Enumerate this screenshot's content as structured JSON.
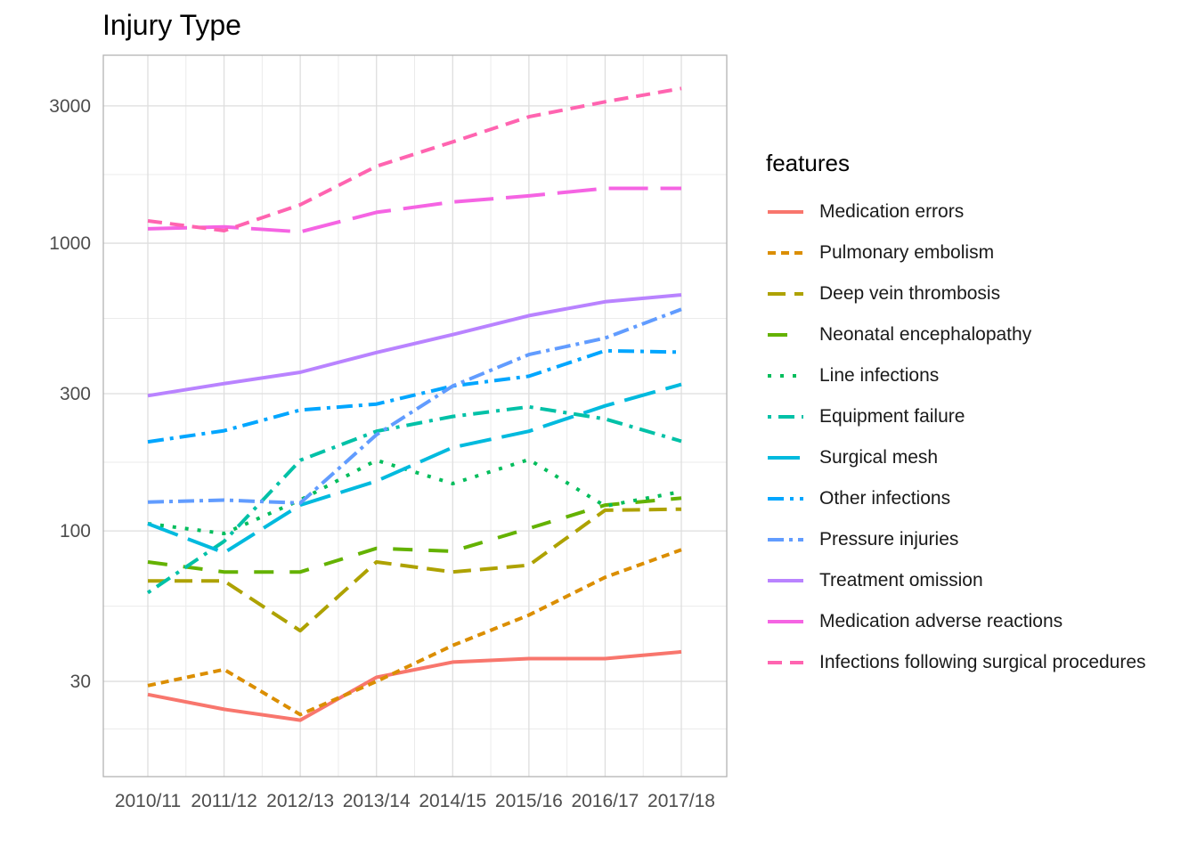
{
  "chart_data": {
    "type": "line",
    "title": "Injury Type",
    "xlabel": "",
    "ylabel": "",
    "x": [
      "2010/11",
      "2011/12",
      "2012/13",
      "2013/14",
      "2014/15",
      "2015/16",
      "2016/17",
      "2017/18"
    ],
    "y_scale": "log10",
    "ylim": [
      14,
      4500
    ],
    "y_ticks": [
      30,
      100,
      300,
      1000,
      3000
    ],
    "y_tick_labels": [
      "30",
      "100",
      "300",
      "1000",
      "3000"
    ],
    "grid": true,
    "legend_title": "features",
    "legend_position": "right",
    "series": [
      {
        "name": "Medication errors",
        "color": "#F8766D",
        "dash": "",
        "values": [
          27,
          24,
          22,
          31,
          35,
          36,
          36,
          38
        ]
      },
      {
        "name": "Pulmonary embolism",
        "color": "#DB8E00",
        "dash": "9,6",
        "values": [
          29,
          33,
          23,
          30,
          40,
          51,
          69,
          86
        ]
      },
      {
        "name": "Deep vein thrombosis",
        "color": "#AEA200",
        "dash": "20,10",
        "values": [
          67,
          67,
          45,
          78,
          72,
          76,
          118,
          119
        ]
      },
      {
        "name": "Neonatal encephalopathy",
        "color": "#64B200",
        "dash": "22,18",
        "values": [
          78,
          72,
          72,
          87,
          85,
          102,
          123,
          130
        ]
      },
      {
        "name": "Line infections",
        "color": "#00BD5C",
        "dash": "4,10",
        "values": [
          106,
          98,
          128,
          176,
          146,
          177,
          122,
          137
        ]
      },
      {
        "name": "Equipment failure",
        "color": "#00C1A7",
        "dash": "4,8,18,8",
        "values": [
          61,
          92,
          176,
          222,
          250,
          270,
          245,
          205
        ]
      },
      {
        "name": "Surgical mesh",
        "color": "#00BADE",
        "dash": "36,12",
        "values": [
          106,
          84,
          123,
          149,
          195,
          222,
          272,
          323
        ]
      },
      {
        "name": "Other infections",
        "color": "#00A6FF",
        "dash": "18,7,4,7",
        "values": [
          204,
          223,
          263,
          276,
          319,
          345,
          423,
          418
        ]
      },
      {
        "name": "Pressure injuries",
        "color": "#619CFF",
        "dash": "18,6,4,6",
        "values": [
          126,
          128,
          125,
          216,
          319,
          410,
          468,
          589
        ]
      },
      {
        "name": "Treatment omission",
        "color": "#B983FF",
        "dash": "",
        "values": [
          295,
          325,
          356,
          417,
          481,
          560,
          626,
          661
        ]
      },
      {
        "name": "Medication adverse reactions",
        "color": "#F564E3",
        "dash": "44,14",
        "values": [
          1122,
          1140,
          1095,
          1280,
          1390,
          1460,
          1550,
          1550
        ]
      },
      {
        "name": "Infections following surgical procedures",
        "color": "#FF64B0",
        "dash": "16,9",
        "values": [
          1195,
          1105,
          1360,
          1850,
          2250,
          2750,
          3100,
          3450
        ]
      }
    ]
  }
}
